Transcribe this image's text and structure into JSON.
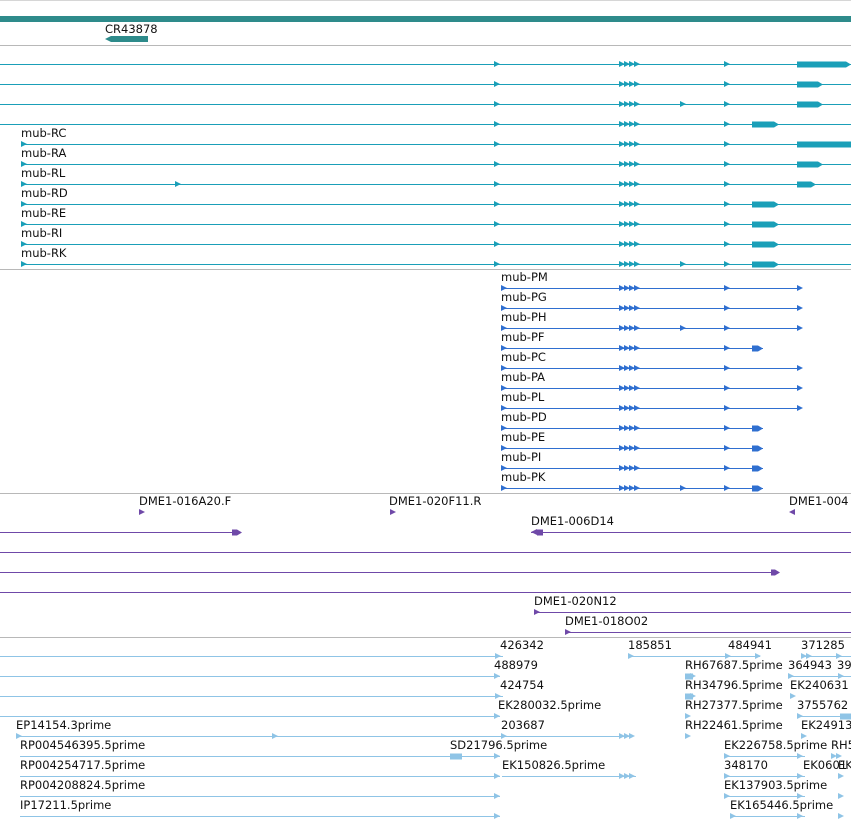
{
  "colors": {
    "separator": "#b8b8b8",
    "ruler": "#2e8b8b",
    "gene": "#1a9fb8",
    "protein": "#2f6fd0",
    "clone": "#6f49a8",
    "est": "#8fc4e6"
  },
  "ruler_segment_label": "CR43878",
  "tracks": {
    "transcripts": [
      {
        "label": "",
        "exons": "full_a"
      },
      {
        "label": "",
        "exons": "mid_a"
      },
      {
        "label": "",
        "exons": "mid_b"
      },
      {
        "label": "",
        "exons": "short_a"
      },
      {
        "label": "mub-RC",
        "exons": "full_b"
      },
      {
        "label": "mub-RA",
        "exons": "mid_a"
      },
      {
        "label": "mub-RL",
        "exons": "mid_c"
      },
      {
        "label": "mub-RD",
        "exons": "short_a"
      },
      {
        "label": "mub-RE",
        "exons": "short_a"
      },
      {
        "label": "mub-RI",
        "exons": "short_a"
      },
      {
        "label": "mub-RK",
        "exons": "short_b"
      }
    ],
    "proteins": [
      "mub-PM",
      "mub-PG",
      "mub-PH",
      "mub-PF",
      "mub-PC",
      "mub-PA",
      "mub-PL",
      "mub-PD",
      "mub-PE",
      "mub-PI",
      "mub-PK"
    ],
    "clones": [
      "DME1-016A20.F",
      "DME1-020F11.R",
      "DME1-004",
      "DME1-006D14",
      "DME1-020N12",
      "DME1-018O02"
    ],
    "ests": [
      "426342",
      "185851",
      "484941",
      "371285",
      "488979",
      "RH67687.5prime",
      "364943",
      "39",
      "424754",
      "RH34796.5prime",
      "EK240631",
      "EK280032.5prime",
      "RH27377.5prime",
      "3755762",
      "EP14154.3prime",
      "203687",
      "RH22461.5prime",
      "EK24913",
      "RP004546395.5prime",
      "SD21796.5prime",
      "EK226758.5prime",
      "RH5",
      "RP004254717.5prime",
      "EK150826.5prime",
      "348170",
      "EK0601",
      "EK",
      "RP004208824.5prime",
      "EK137903.5prime",
      "IP17211.5prime",
      "EK165446.5prime"
    ]
  }
}
